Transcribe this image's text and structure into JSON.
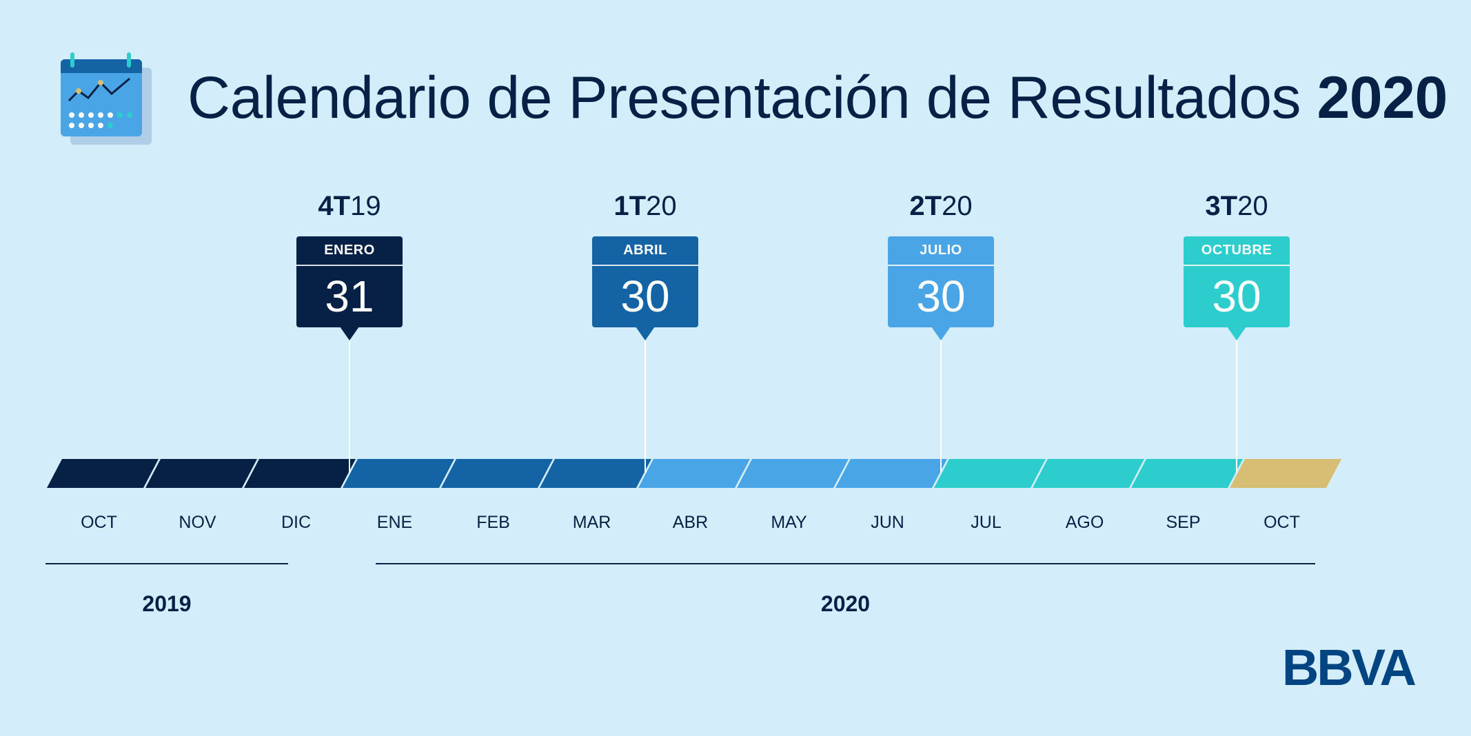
{
  "header": {
    "title": "Calendario de Presentación de Resultados",
    "title_year": "2020",
    "icon": "calendar-chart-icon"
  },
  "events": [
    {
      "quarter_bold": "4T",
      "quarter_year": "19",
      "month": "ENERO",
      "day": "31",
      "color": "#072146",
      "month_index": 3
    },
    {
      "quarter_bold": "1T",
      "quarter_year": "20",
      "month": "ABRIL",
      "day": "30",
      "color": "#1464a5",
      "month_index": 6
    },
    {
      "quarter_bold": "2T",
      "quarter_year": "20",
      "month": "JULIO",
      "day": "30",
      "color": "#49a5e6",
      "month_index": 9
    },
    {
      "quarter_bold": "3T",
      "quarter_year": "20",
      "month": "OCTUBRE",
      "day": "30",
      "color": "#2dcccd",
      "month_index": 12
    }
  ],
  "timeline": {
    "months": [
      {
        "label": "OCT",
        "color": "#072146"
      },
      {
        "label": "NOV",
        "color": "#072146"
      },
      {
        "label": "DIC",
        "color": "#072146"
      },
      {
        "label": "ENE",
        "color": "#1464a5"
      },
      {
        "label": "FEB",
        "color": "#1464a5"
      },
      {
        "label": "MAR",
        "color": "#1464a5"
      },
      {
        "label": "ABR",
        "color": "#49a5e6"
      },
      {
        "label": "MAY",
        "color": "#49a5e6"
      },
      {
        "label": "JUN",
        "color": "#49a5e6"
      },
      {
        "label": "JUL",
        "color": "#2dcccd"
      },
      {
        "label": "AGO",
        "color": "#2dcccd"
      },
      {
        "label": "SEP",
        "color": "#2dcccd"
      },
      {
        "label": "OCT",
        "color": "#d8be75"
      }
    ],
    "years": [
      {
        "label": "2019",
        "first_month": 0,
        "last_month": 2
      },
      {
        "label": "2020",
        "first_month": 3,
        "last_month": 12
      }
    ]
  },
  "brand": {
    "logo": "BBVA",
    "color": "#004481"
  }
}
